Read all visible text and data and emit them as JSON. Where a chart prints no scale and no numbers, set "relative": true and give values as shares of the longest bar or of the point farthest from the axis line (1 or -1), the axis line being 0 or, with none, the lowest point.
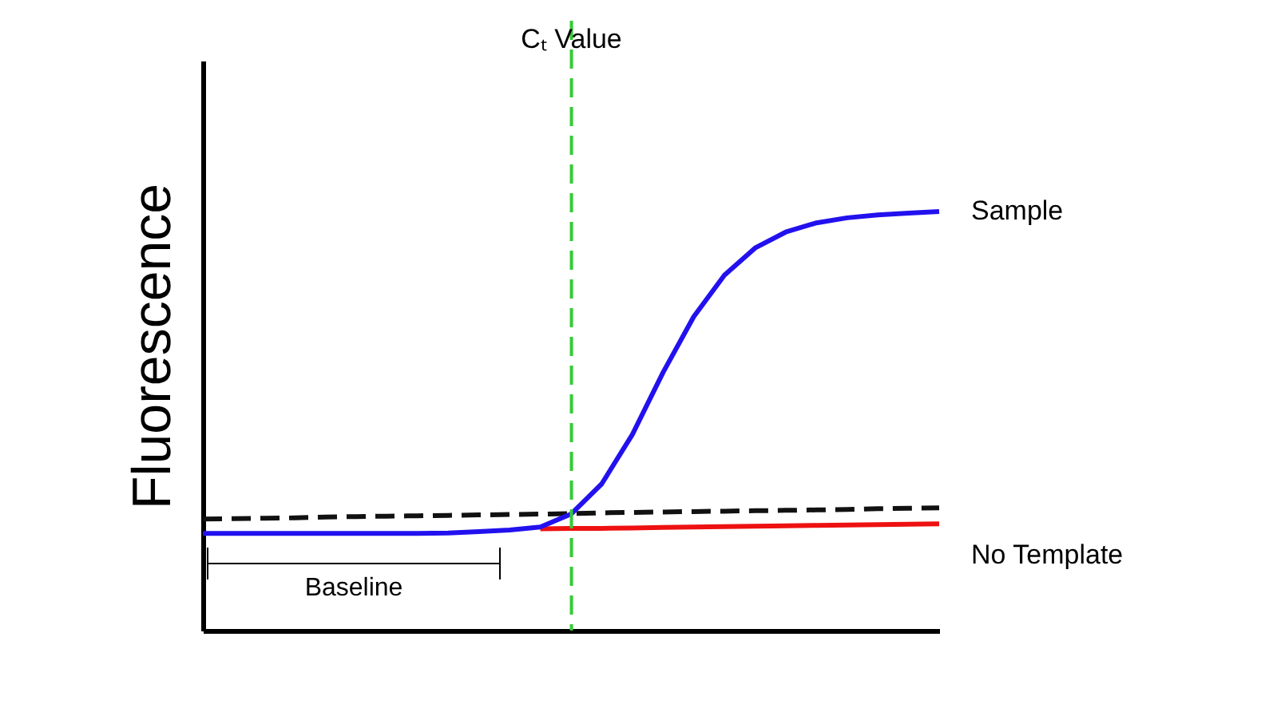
{
  "chart_data": {
    "type": "line",
    "relative": true,
    "ylabel": "Fluorescence",
    "grid": false,
    "tick_labels": false,
    "marker": "none",
    "categories": [
      null,
      null,
      null,
      null,
      null,
      null,
      null,
      null,
      null,
      null,
      null,
      null,
      null,
      null,
      null,
      null,
      null,
      null,
      null,
      null,
      null,
      null,
      null,
      null,
      null
    ],
    "series": [
      {
        "name": "No Template",
        "color": "#ee1111",
        "line_style": "solid",
        "values": [
          null,
          null,
          null,
          null,
          null,
          null,
          null,
          null,
          null,
          null,
          null,
          0.243,
          0.244,
          0.244,
          0.245,
          0.246,
          0.247,
          0.248,
          0.249,
          0.25,
          0.251,
          0.252,
          0.253,
          0.254,
          0.255
        ]
      },
      {
        "color": "#111111",
        "line_style": "dashed",
        "values": [
          0.266,
          0.267,
          0.268,
          0.269,
          0.271,
          0.272,
          0.273,
          0.274,
          0.275,
          0.276,
          0.277,
          0.278,
          0.279,
          0.281,
          0.282,
          0.283,
          0.284,
          0.285,
          0.286,
          0.287,
          0.288,
          0.289,
          0.291,
          0.292,
          0.293
        ]
      },
      {
        "name": "Sample",
        "color": "#2211ee",
        "line_style": "solid",
        "values": [
          0.232,
          0.232,
          0.232,
          0.232,
          0.232,
          0.232,
          0.232,
          0.232,
          0.233,
          0.236,
          0.24,
          0.247,
          0.278,
          0.35,
          0.468,
          0.616,
          0.749,
          0.848,
          0.913,
          0.951,
          0.973,
          0.985,
          0.992,
          0.996,
          1.0
        ]
      }
    ],
    "annotations": [
      "Cₜ Value",
      "Baseline"
    ]
  }
}
